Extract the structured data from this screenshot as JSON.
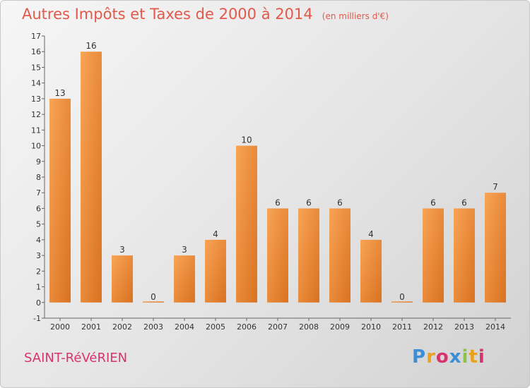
{
  "header": {
    "title": "Autres Impôts et Taxes de 2000 à 2014",
    "unit": "(en milliers d'€)"
  },
  "footer": {
    "commune": "SAINT-RéVéRIEN",
    "logo_text": "Proxiti",
    "logo_colors": [
      "#3a8fd6",
      "#e8a21b",
      "#d9336f",
      "#3a8fd6",
      "#8bc34a",
      "#e8a21b",
      "#d9336f"
    ]
  },
  "colors": {
    "bar_light": "#f8a455",
    "bar_dark": "#d97220",
    "title": "#e2584a",
    "commune": "#d9336f",
    "text": "#333333"
  },
  "chart_data": {
    "type": "bar",
    "categories": [
      "2000",
      "2001",
      "2002",
      "2003",
      "2004",
      "2005",
      "2006",
      "2007",
      "2008",
      "2009",
      "2010",
      "2011",
      "2012",
      "2013",
      "2014"
    ],
    "values": [
      13,
      16,
      3,
      0,
      3,
      4,
      10,
      6,
      6,
      6,
      4,
      0,
      6,
      6,
      7
    ],
    "data_labels": [
      "13",
      "16",
      "3",
      "0",
      "3",
      "4",
      "10",
      "6",
      "6",
      "6",
      "4",
      "0",
      "6",
      "6",
      "7"
    ],
    "ylim": [
      -1,
      17
    ],
    "yticks": [
      -1,
      0,
      1,
      2,
      3,
      4,
      5,
      6,
      7,
      8,
      9,
      10,
      11,
      12,
      13,
      14,
      15,
      16,
      17
    ],
    "ytick_labels": [
      "-1",
      "0",
      "1",
      "2",
      "3",
      "4",
      "5",
      "6",
      "7",
      "8",
      "9",
      "10",
      "11",
      "12",
      "13",
      "14",
      "15",
      "16",
      "17"
    ],
    "title": "Autres Impôts et Taxes de 2000 à 2014",
    "xlabel": "",
    "ylabel": "",
    "grid": false,
    "legend": "none"
  }
}
